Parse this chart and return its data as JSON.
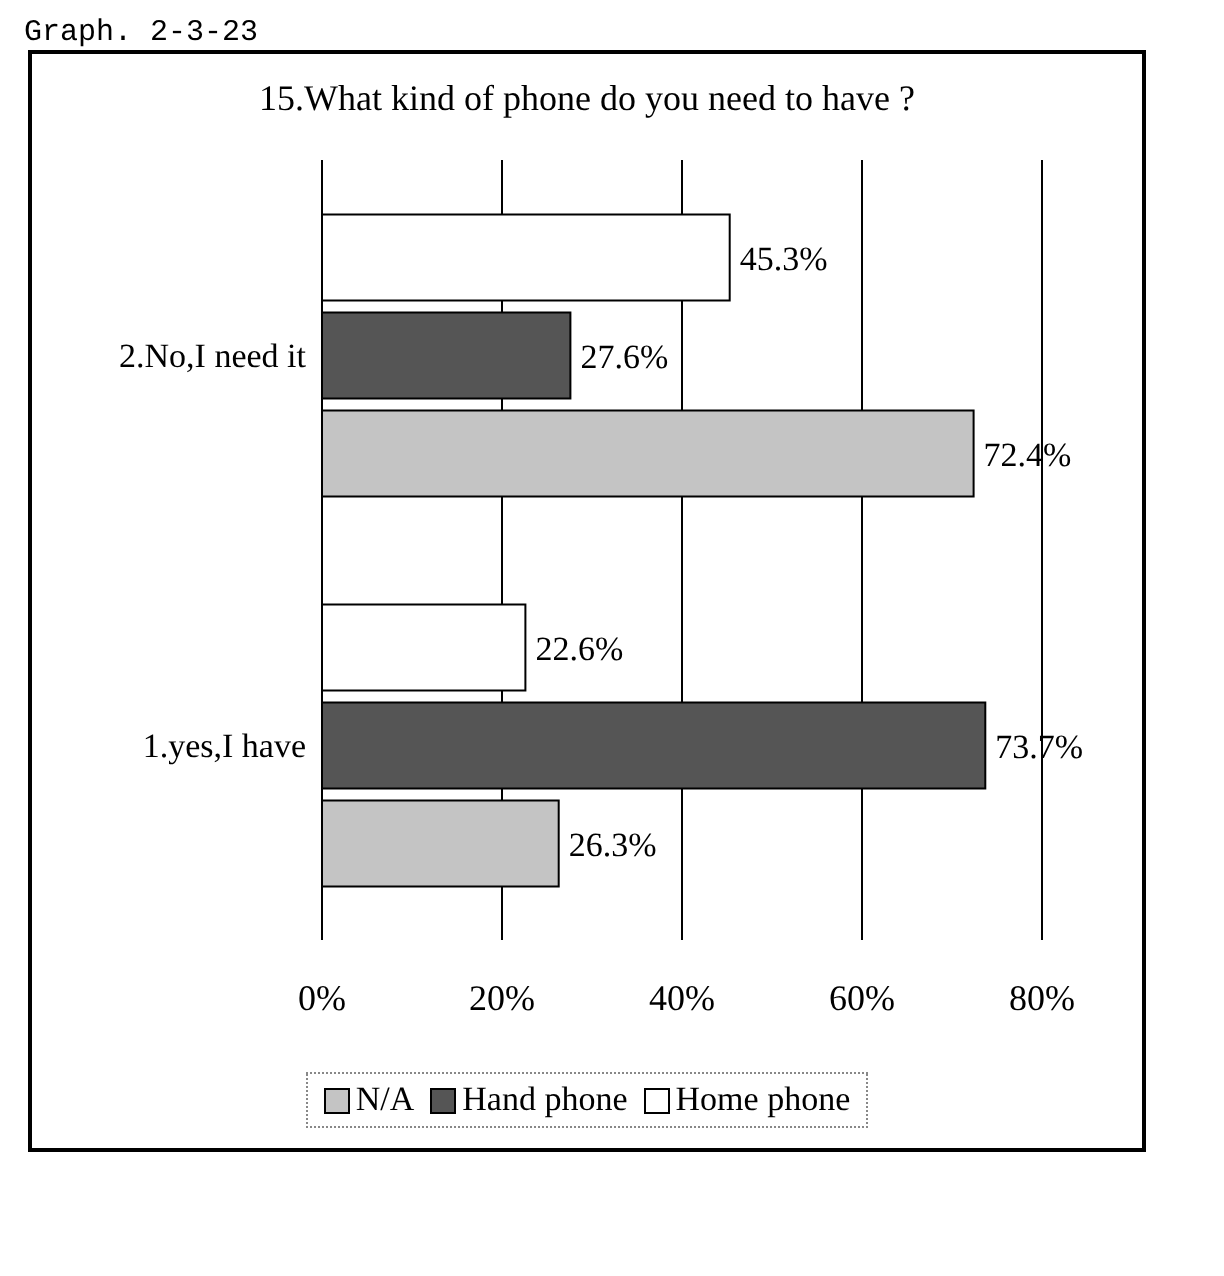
{
  "chart_data": {
    "type": "bar",
    "orientation": "horizontal",
    "title": "15.What kind of phone do you need to have ?",
    "annotations": [
      "Graph. 2-3-23"
    ],
    "categories": [
      "2.No,I need it",
      "1.yes,I have"
    ],
    "series": [
      {
        "name": "N/A",
        "color": "#c4c4c4",
        "values": [
          72.4,
          26.3
        ],
        "value_labels": [
          "72.4%",
          "26.3%"
        ]
      },
      {
        "name": "Hand phone",
        "color": "#555555",
        "values": [
          27.6,
          73.7
        ],
        "value_labels": [
          "27.6%",
          "73.7%"
        ]
      },
      {
        "name": "Home phone",
        "color": "#ffffff",
        "values": [
          45.3,
          22.6
        ],
        "value_labels": [
          "45.3%",
          "22.6%"
        ]
      }
    ],
    "xlim": [
      0,
      80
    ],
    "xticks": [
      {
        "value": 0,
        "label": "0%"
      },
      {
        "value": 20,
        "label": "20%"
      },
      {
        "value": 40,
        "label": "40%"
      },
      {
        "value": 60,
        "label": "60%"
      },
      {
        "value": 80,
        "label": "80%"
      }
    ],
    "grid": "x",
    "legend": "bottom"
  }
}
